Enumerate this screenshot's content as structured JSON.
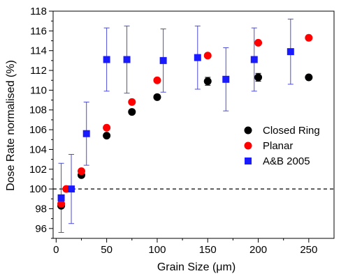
{
  "chart_data": {
    "type": "scatter",
    "xlabel": "Grain Size (μm)",
    "ylabel": "Dose Rate normalised (%)",
    "xlim": [
      -3,
      275
    ],
    "ylim": [
      95,
      118
    ],
    "x_ticks": [
      0,
      50,
      100,
      150,
      200,
      250
    ],
    "y_ticks": [
      96,
      98,
      100,
      102,
      104,
      106,
      108,
      110,
      112,
      114,
      116,
      118
    ],
    "x_tick_labels": [
      "0",
      "50",
      "100",
      "150",
      "200",
      "250"
    ],
    "y_tick_labels": [
      "96",
      "98",
      "100",
      "102",
      "104",
      "106",
      "108",
      "110",
      "112",
      "114",
      "116",
      "118"
    ],
    "x_minor_step": 25,
    "y_minor_step": 1,
    "reference_line": {
      "y": 100,
      "style": "dashed"
    },
    "legend_position": "center-right",
    "series": [
      {
        "name": "Closed Ring",
        "marker": "circle",
        "color": "#000000",
        "points": [
          {
            "x": 5,
            "y": 98.3
          },
          {
            "x": 25,
            "y": 101.4
          },
          {
            "x": 50,
            "y": 105.4
          },
          {
            "x": 75,
            "y": 107.8
          },
          {
            "x": 100,
            "y": 109.3
          },
          {
            "x": 150,
            "y": 110.9,
            "err": 0.4
          },
          {
            "x": 200,
            "y": 111.3,
            "err": 0.4
          },
          {
            "x": 250,
            "y": 111.3
          }
        ]
      },
      {
        "name": "Planar",
        "marker": "circle",
        "color": "#ff0000",
        "points": [
          {
            "x": 5,
            "y": 98.5
          },
          {
            "x": 10,
            "y": 100.0
          },
          {
            "x": 25,
            "y": 101.8
          },
          {
            "x": 50,
            "y": 106.2
          },
          {
            "x": 75,
            "y": 108.8
          },
          {
            "x": 100,
            "y": 111.0
          },
          {
            "x": 150,
            "y": 113.5
          },
          {
            "x": 200,
            "y": 114.8
          },
          {
            "x": 250,
            "y": 115.3
          }
        ]
      },
      {
        "name": "A&B 2005",
        "marker": "square",
        "color": "#1a1aff",
        "error_color": "#4b4bd6",
        "points": [
          {
            "x": 5,
            "y": 99.1,
            "err": 3.5
          },
          {
            "x": 15,
            "y": 100.0,
            "err": 3.5
          },
          {
            "x": 30,
            "y": 105.6,
            "err": 3.2
          },
          {
            "x": 50,
            "y": 113.1,
            "err": 3.2
          },
          {
            "x": 70,
            "y": 113.1,
            "err": 3.4
          },
          {
            "x": 106,
            "y": 113.0,
            "err": 3.2
          },
          {
            "x": 140,
            "y": 113.3,
            "err": 3.2
          },
          {
            "x": 168,
            "y": 111.1,
            "err": 3.2
          },
          {
            "x": 196,
            "y": 113.1,
            "err": 3.2
          },
          {
            "x": 232,
            "y": 113.9,
            "err": 3.3
          }
        ]
      }
    ]
  }
}
